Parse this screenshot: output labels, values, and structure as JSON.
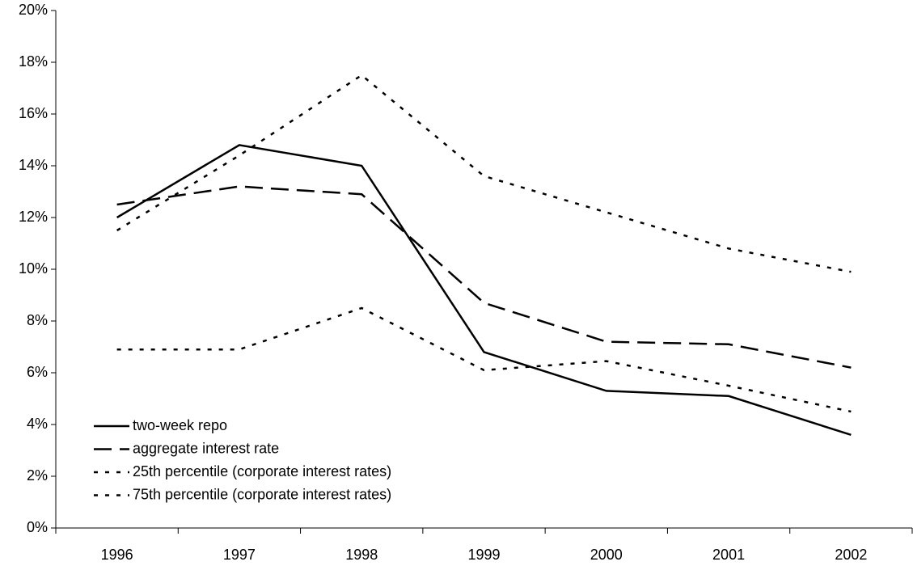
{
  "chart_data": {
    "type": "line",
    "categories": [
      "1996",
      "1997",
      "1998",
      "1999",
      "2000",
      "2001",
      "2002"
    ],
    "ylim": [
      0,
      20
    ],
    "yticks": [
      {
        "value": 0,
        "label": "0%"
      },
      {
        "value": 2,
        "label": "2%"
      },
      {
        "value": 4,
        "label": "4%"
      },
      {
        "value": 6,
        "label": "6%"
      },
      {
        "value": 8,
        "label": "8%"
      },
      {
        "value": 10,
        "label": "10%"
      },
      {
        "value": 12,
        "label": "12%"
      },
      {
        "value": 14,
        "label": "14%"
      },
      {
        "value": 16,
        "label": "16%"
      },
      {
        "value": 18,
        "label": "18%"
      },
      {
        "value": 20,
        "label": "20%"
      }
    ],
    "grid": false,
    "legend": "lower left",
    "series": [
      {
        "name": "two-week repo",
        "color": "#000000",
        "dash": "solid",
        "values": [
          12.0,
          14.8,
          14.0,
          6.8,
          5.3,
          5.1,
          3.6
        ]
      },
      {
        "name": "aggregate interest rate",
        "color": "#000000",
        "dash": "dashed",
        "values": [
          12.5,
          13.2,
          12.9,
          8.7,
          7.2,
          7.1,
          6.2
        ]
      },
      {
        "name": "25th percentile (corporate interest rates)",
        "color": "#000000",
        "dash": "dotted",
        "values": [
          6.9,
          6.9,
          8.5,
          6.1,
          6.45,
          5.5,
          4.5
        ]
      },
      {
        "name": "75th percentile (corporate interest rates)",
        "color": "#000000",
        "dash": "dotted",
        "values": [
          11.5,
          14.4,
          17.5,
          13.6,
          12.2,
          10.8,
          9.9
        ]
      }
    ]
  }
}
